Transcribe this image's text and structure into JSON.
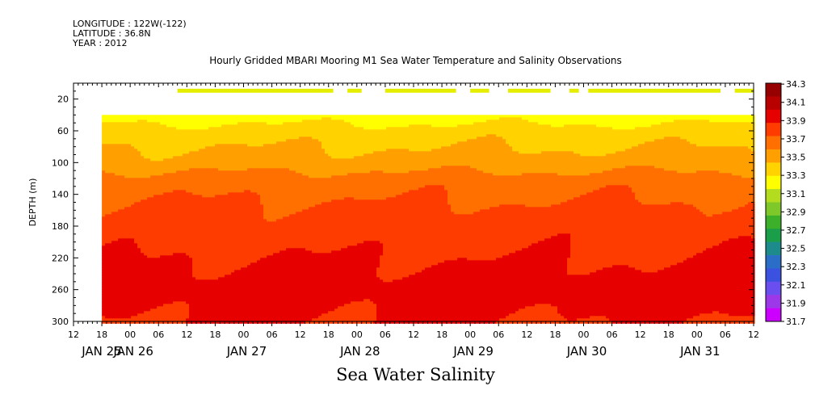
{
  "header": {
    "longitude": "LONGITUDE : 122W(-122)",
    "latitude": "LATITUDE : 36.8N",
    "year": "YEAR : 2012"
  },
  "chart_data": {
    "type": "heatmap",
    "title": "Hourly Gridded MBARI Mooring M1 Sea Water Temperature and Salinity Observations",
    "xlabel": "Sea Water Salinity",
    "ylabel": "DEPTH (m)",
    "variable": "Sea Water Salinity",
    "x_start": "2012-01-25 12:00",
    "x_end": "2012-01-31 12:00",
    "data_start": "2012-01-25 18:00",
    "x_hour_ticks": [
      "12",
      "18",
      "00",
      "06",
      "12",
      "18",
      "00",
      "06",
      "12",
      "18",
      "00",
      "06",
      "12",
      "18",
      "00",
      "06",
      "12",
      "18",
      "00",
      "06",
      "12",
      "18",
      "00",
      "06",
      "12"
    ],
    "x_day_labels": [
      "JAN 25",
      "JAN 26",
      "JAN 27",
      "JAN 28",
      "JAN 29",
      "JAN 30",
      "JAN 31"
    ],
    "ylim": [
      300,
      0
    ],
    "y_ticks": [
      20,
      60,
      100,
      140,
      180,
      220,
      260,
      300
    ],
    "levels": [
      31.7,
      31.9,
      32.1,
      32.3,
      32.5,
      32.7,
      32.9,
      33.1,
      33.3,
      33.5,
      33.7,
      33.9,
      34.1,
      34.3
    ],
    "level_colors": [
      "#cc00ff",
      "#9d38e8",
      "#6a4ef0",
      "#3b52e0",
      "#2a6ec8",
      "#1d8b8b",
      "#1a9e4a",
      "#3cb028",
      "#7ec82a",
      "#b4dc1e",
      "#ffff00",
      "#ffd200",
      "#ffa000",
      "#ff7000",
      "#ff3c00",
      "#e60000",
      "#b80000",
      "#960000"
    ],
    "colorbar_labels": [
      "34.3",
      "34.1",
      "33.9",
      "33.7",
      "33.5",
      "33.3",
      "33.1",
      "32.9",
      "32.7",
      "32.5",
      "32.3",
      "32.1",
      "31.9",
      "31.7"
    ],
    "depth_profile": [
      {
        "depth": 10,
        "salinity": 33.2
      },
      {
        "depth": 40,
        "salinity": 33.2
      },
      {
        "depth": 60,
        "salinity": 33.4
      },
      {
        "depth": 80,
        "salinity": 33.5
      },
      {
        "depth": 100,
        "salinity": 33.6
      },
      {
        "depth": 120,
        "salinity": 33.8
      },
      {
        "depth": 160,
        "salinity": 33.95
      },
      {
        "depth": 200,
        "salinity": 34.05
      },
      {
        "depth": 240,
        "salinity": 34.15
      },
      {
        "depth": 260,
        "salinity": 34.22
      },
      {
        "depth": 280,
        "salinity": 34.15
      },
      {
        "depth": 300,
        "salinity": 34.1
      }
    ],
    "surface_segments": [
      {
        "start": "2012-01-26 10:00",
        "end": "2012-01-27 19:00"
      },
      {
        "start": "2012-01-27 22:00",
        "end": "2012-01-28 01:00"
      },
      {
        "start": "2012-01-28 06:00",
        "end": "2012-01-28 21:00"
      },
      {
        "start": "2012-01-29 00:00",
        "end": "2012-01-29 04:00"
      },
      {
        "start": "2012-01-29 08:00",
        "end": "2012-01-29 17:00"
      },
      {
        "start": "2012-01-29 21:00",
        "end": "2012-01-29 23:00"
      },
      {
        "start": "2012-01-30 01:00",
        "end": "2012-01-31 05:00"
      },
      {
        "start": "2012-01-31 08:00",
        "end": "2012-01-31 12:00"
      }
    ],
    "surface_depth_range": [
      7,
      12
    ],
    "surface_salinity": 33.3,
    "colors": {
      "surface_segment": "#e6ee00",
      "frame": "#000000"
    }
  }
}
